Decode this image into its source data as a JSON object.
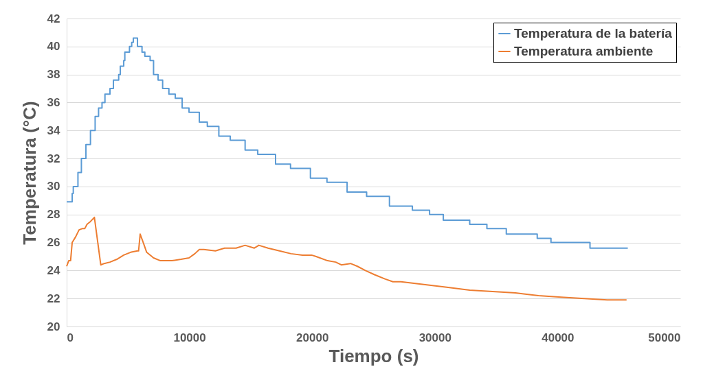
{
  "chart_data": {
    "type": "line",
    "xlabel": "Tiempo (s)",
    "ylabel": "Temperatura (°C)",
    "xlim": [
      0,
      50000
    ],
    "xticks": [
      0,
      10000,
      20000,
      30000,
      40000,
      50000
    ],
    "ylim": [
      20,
      42
    ],
    "yticks": [
      20,
      22,
      24,
      26,
      28,
      30,
      32,
      34,
      36,
      38,
      40,
      42
    ],
    "grid": "y",
    "legend": "top right",
    "marker": "none",
    "line_style": "solid",
    "series": [
      {
        "name": "Temperatura de la batería",
        "type": "step",
        "color": "#5b9bd5",
        "x": [
          0,
          450,
          540,
          920,
          1200,
          1570,
          1940,
          2320,
          2600,
          2880,
          3120,
          3530,
          3810,
          4240,
          4370,
          4650,
          4740,
          5120,
          5300,
          5430,
          5770,
          6140,
          6370,
          6800,
          7080,
          7450,
          7820,
          8330,
          8850,
          9410,
          9970,
          10810,
          11460,
          12400,
          13330,
          14540,
          15570,
          17020,
          18240,
          19860,
          21210,
          22850,
          24440,
          26300,
          28170,
          29570,
          30690,
          32840,
          34240,
          35820,
          38340,
          39460,
          42640,
          45720
        ],
        "values": [
          28.9,
          29.5,
          30.0,
          31.0,
          32.0,
          33.0,
          34.0,
          35.0,
          35.6,
          36.0,
          36.6,
          37.0,
          37.6,
          38.0,
          38.6,
          39.0,
          39.6,
          40.0,
          40.3,
          40.6,
          40.0,
          39.6,
          39.3,
          39.0,
          38.0,
          37.6,
          37.0,
          36.6,
          36.3,
          35.6,
          35.3,
          34.6,
          34.3,
          33.6,
          33.3,
          32.6,
          32.3,
          31.6,
          31.3,
          30.6,
          30.3,
          29.6,
          29.3,
          28.6,
          28.3,
          28.0,
          27.6,
          27.3,
          27.0,
          26.6,
          26.3,
          26.0,
          25.6,
          25.6
        ]
      },
      {
        "name": "Temperatura ambiente",
        "color": "#ed7d31",
        "x": [
          0,
          170,
          320,
          450,
          730,
          1010,
          1290,
          1480,
          1660,
          1940,
          2260,
          2780,
          3060,
          3530,
          4090,
          4650,
          5210,
          5770,
          5860,
          5990,
          6240,
          6520,
          7080,
          7640,
          8570,
          9320,
          9970,
          10440,
          10810,
          11180,
          12120,
          12860,
          13800,
          14540,
          15290,
          15660,
          16410,
          17340,
          18280,
          19210,
          19960,
          20330,
          21260,
          21920,
          22380,
          23130,
          23690,
          24340,
          25090,
          25930,
          26580,
          27240,
          29100,
          30970,
          32840,
          34700,
          36570,
          38440,
          40300,
          42170,
          44040,
          45620
        ],
        "values": [
          24.3,
          24.7,
          24.7,
          26.0,
          26.4,
          26.9,
          27.0,
          27.0,
          27.3,
          27.5,
          27.8,
          24.4,
          24.5,
          24.6,
          24.8,
          25.1,
          25.3,
          25.4,
          25.4,
          26.6,
          26.0,
          25.3,
          24.9,
          24.7,
          24.7,
          24.8,
          24.9,
          25.2,
          25.5,
          25.5,
          25.4,
          25.6,
          25.6,
          25.8,
          25.6,
          25.8,
          25.6,
          25.4,
          25.2,
          25.1,
          25.1,
          25.0,
          24.7,
          24.6,
          24.4,
          24.5,
          24.3,
          24.0,
          23.7,
          23.4,
          23.2,
          23.2,
          23.0,
          22.8,
          22.6,
          22.5,
          22.4,
          22.2,
          22.1,
          22.0,
          21.9,
          21.9
        ]
      }
    ]
  }
}
